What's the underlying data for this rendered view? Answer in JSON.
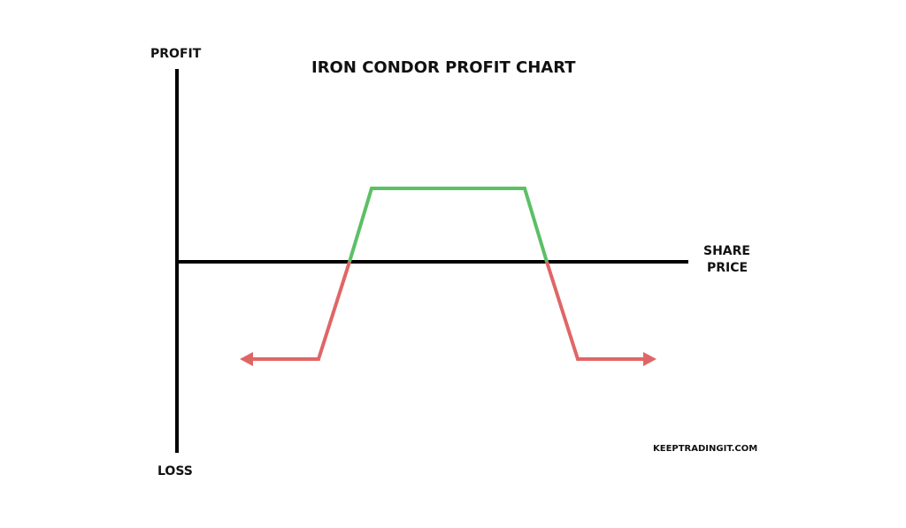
{
  "title": "IRON CONDOR PROFIT CHART",
  "y_top_label": "PROFIT",
  "y_bottom_label": "LOSS",
  "x_label_line1": "SHARE",
  "x_label_line2": "PRICE",
  "watermark": "KEEPTRADINGIT.COM",
  "colors": {
    "profit": "#5cc065",
    "loss": "#e06666",
    "axis": "#000000"
  }
}
